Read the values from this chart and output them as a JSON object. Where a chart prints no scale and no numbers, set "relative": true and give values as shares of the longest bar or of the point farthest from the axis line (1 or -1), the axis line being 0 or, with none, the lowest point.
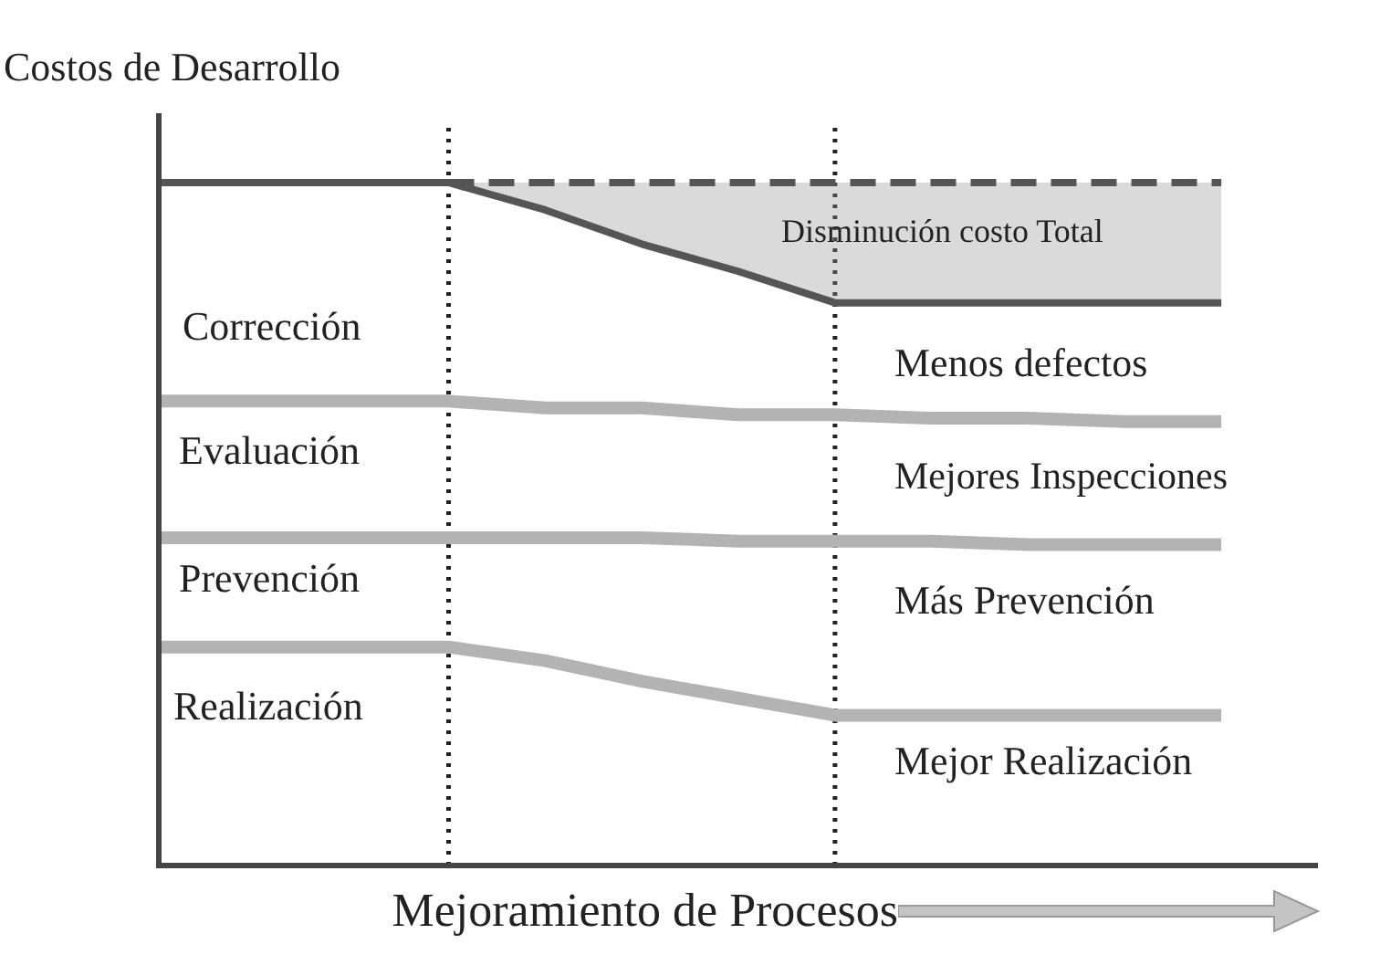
{
  "chart_data": {
    "type": "line",
    "relative": true,
    "title": "Costos de Desarrollo",
    "xlabel": "Mejoramiento de Procesos",
    "categories": [
      null,
      null,
      null,
      null,
      null,
      null,
      null,
      null,
      null,
      null,
      null,
      null,
      null
    ],
    "marker": "none",
    "series": [
      {
        "type": "area",
        "line_style": "dashed",
        "color": "#555555",
        "values": [
          null,
          null,
          null,
          1,
          1,
          1,
          1,
          1,
          1,
          1,
          1,
          1,
          null
        ]
      },
      {
        "color": "#555555",
        "values": [
          1,
          1,
          1,
          1,
          0.96,
          0.91,
          0.87,
          0.824,
          0.824,
          0.824,
          0.824,
          0.824,
          null
        ]
      },
      {
        "color": "#b3b3b3",
        "values": [
          0.68,
          0.68,
          0.68,
          0.68,
          0.67,
          0.67,
          0.66,
          0.66,
          0.655,
          0.655,
          0.65,
          0.65,
          null
        ]
      },
      {
        "color": "#b3b3b3",
        "values": [
          0.48,
          0.48,
          0.48,
          0.48,
          0.48,
          0.48,
          0.475,
          0.475,
          0.475,
          0.47,
          0.47,
          0.47,
          null
        ]
      },
      {
        "color": "#b3b3b3",
        "values": [
          0.32,
          0.32,
          0.32,
          0.32,
          0.3,
          0.27,
          0.245,
          0.22,
          0.22,
          0.22,
          0.22,
          0.22,
          null
        ]
      }
    ],
    "annotations": [
      "Corrección",
      "Evaluación",
      "Prevención",
      "Realización",
      "Disminución costo Total",
      "Menos defectos",
      "Mejores Inspecciones",
      "Más Prevención",
      "Mejor Realización"
    ]
  }
}
